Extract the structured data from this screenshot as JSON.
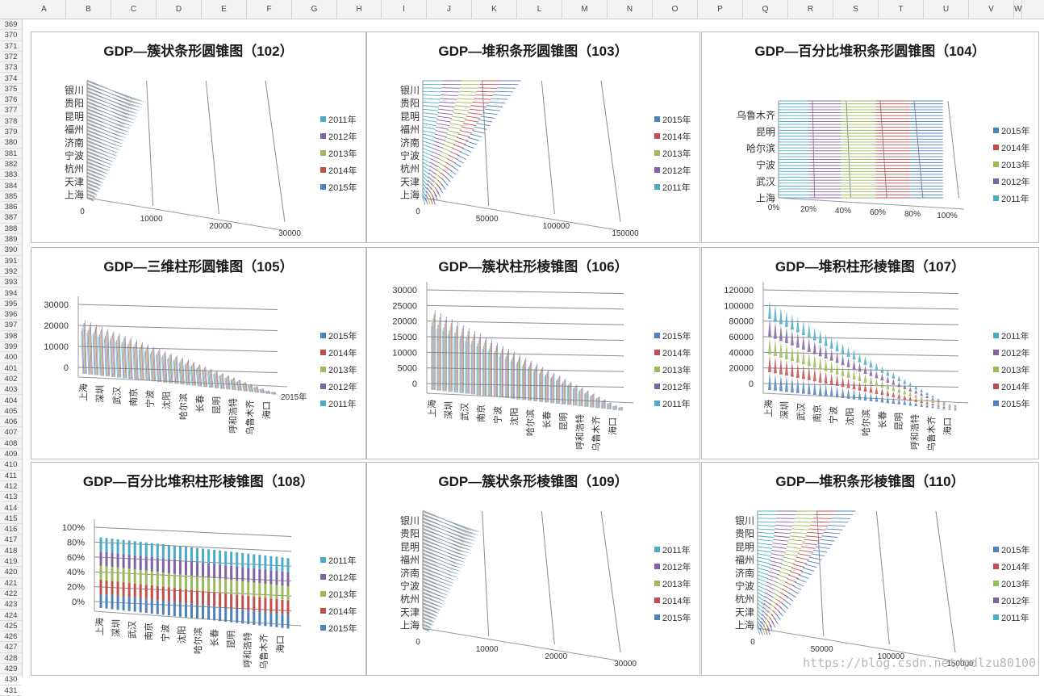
{
  "spreadsheet": {
    "columns": [
      "A",
      "B",
      "C",
      "D",
      "E",
      "F",
      "G",
      "H",
      "I",
      "J",
      "K",
      "L",
      "M",
      "N",
      "O",
      "P",
      "Q",
      "R",
      "S",
      "T",
      "U",
      "V",
      "W"
    ],
    "rows": [
      "369",
      "370",
      "371",
      "372",
      "373",
      "374",
      "375",
      "376",
      "377",
      "378",
      "379",
      "380",
      "381",
      "382",
      "383",
      "384",
      "385",
      "386",
      "387",
      "388",
      "389",
      "390",
      "391",
      "392",
      "393",
      "394",
      "395",
      "396",
      "397",
      "398",
      "399",
      "400",
      "401",
      "402",
      "403",
      "404",
      "405",
      "406",
      "407",
      "408",
      "409",
      "410",
      "411",
      "412",
      "413",
      "414",
      "415",
      "416",
      "417",
      "418",
      "419",
      "420",
      "421",
      "422",
      "423",
      "424",
      "425",
      "426",
      "427",
      "428",
      "429",
      "430",
      "431"
    ]
  },
  "watermark": "https://blog.csdn.net/pdlzu80100",
  "colors": {
    "2011": "#4bacc6",
    "2012": "#8064a2",
    "2013": "#9bbb59",
    "2014": "#c0504d",
    "2015": "#4f81bd"
  },
  "charts": [
    {
      "title": "GDP—簇状条形圆锥图（102）",
      "chart_data": {
        "type": "bar",
        "orientation": "horizontal",
        "stacking": "clustered",
        "shape": "cone",
        "category_labels": [
          "银川",
          "贵阳",
          "昆明",
          "福州",
          "济南",
          "宁波",
          "杭州",
          "天津",
          "上海"
        ],
        "value_ticks": [
          "0",
          "10000",
          "20000",
          "30000"
        ],
        "xlim": [
          0,
          30000
        ],
        "legend": [
          "2011年",
          "2012年",
          "2013年",
          "2014年",
          "2015年"
        ]
      }
    },
    {
      "title": "GDP—堆积条形圆锥图（103）",
      "chart_data": {
        "type": "bar",
        "orientation": "horizontal",
        "stacking": "stacked",
        "shape": "cone",
        "category_labels": [
          "银川",
          "贵阳",
          "昆明",
          "福州",
          "济南",
          "宁波",
          "杭州",
          "天津",
          "上海"
        ],
        "value_ticks": [
          "0",
          "50000",
          "100000",
          "150000"
        ],
        "xlim": [
          0,
          150000
        ],
        "legend": [
          "2015年",
          "2014年",
          "2013年",
          "2012年",
          "2011年"
        ]
      }
    },
    {
      "title": "GDP—百分比堆积条形圆锥图（104）",
      "chart_data": {
        "type": "bar",
        "orientation": "horizontal",
        "stacking": "percent",
        "shape": "cone",
        "category_labels": [
          "乌鲁木齐",
          "昆明",
          "哈尔滨",
          "宁波",
          "武汉",
          "上海"
        ],
        "value_ticks": [
          "0%",
          "20%",
          "40%",
          "60%",
          "80%",
          "100%"
        ],
        "xlim": [
          0,
          1
        ],
        "legend": [
          "2015年",
          "2014年",
          "2013年",
          "2012年",
          "2011年"
        ]
      }
    },
    {
      "title": "GDP—三维柱形圆锥图（105）",
      "chart_data": {
        "type": "bar",
        "orientation": "vertical",
        "stacking": "3d",
        "shape": "cone",
        "category_labels": [
          "上海",
          "深圳",
          "武汉",
          "南京",
          "宁波",
          "沈阳",
          "哈尔滨",
          "长春",
          "昆明",
          "呼和浩特",
          "乌鲁木齐",
          "海口"
        ],
        "value_ticks": [
          "30000",
          "20000",
          "10000",
          "0"
        ],
        "ylim": [
          0,
          30000
        ],
        "depth_label": "2015年",
        "legend": [
          "2015年",
          "2014年",
          "2013年",
          "2012年",
          "2011年"
        ]
      }
    },
    {
      "title": "GDP—簇状柱形棱锥图（106）",
      "chart_data": {
        "type": "bar",
        "orientation": "vertical",
        "stacking": "clustered",
        "shape": "pyramid",
        "category_labels": [
          "上海",
          "深圳",
          "武汉",
          "南京",
          "宁波",
          "沈阳",
          "哈尔滨",
          "长春",
          "昆明",
          "呼和浩特",
          "乌鲁木齐",
          "海口"
        ],
        "value_ticks": [
          "30000",
          "25000",
          "20000",
          "15000",
          "10000",
          "5000",
          "0"
        ],
        "ylim": [
          0,
          30000
        ],
        "legend": [
          "2015年",
          "2014年",
          "2013年",
          "2012年",
          "2011年"
        ]
      }
    },
    {
      "title": "GDP—堆积柱形棱锥图（107）",
      "chart_data": {
        "type": "bar",
        "orientation": "vertical",
        "stacking": "stacked",
        "shape": "pyramid",
        "category_labels": [
          "上海",
          "深圳",
          "武汉",
          "南京",
          "宁波",
          "沈阳",
          "哈尔滨",
          "长春",
          "昆明",
          "呼和浩特",
          "乌鲁木齐",
          "海口"
        ],
        "value_ticks": [
          "120000",
          "100000",
          "80000",
          "60000",
          "40000",
          "20000",
          "0"
        ],
        "ylim": [
          0,
          120000
        ],
        "legend": [
          "2011年",
          "2012年",
          "2013年",
          "2014年",
          "2015年"
        ]
      }
    },
    {
      "title": "GDP—百分比堆积柱形棱锥图（108）",
      "chart_data": {
        "type": "bar",
        "orientation": "vertical",
        "stacking": "percent",
        "shape": "pyramid",
        "category_labels": [
          "上海",
          "深圳",
          "武汉",
          "南京",
          "宁波",
          "沈阳",
          "哈尔滨",
          "长春",
          "昆明",
          "呼和浩特",
          "乌鲁木齐",
          "海口"
        ],
        "value_ticks": [
          "100%",
          "80%",
          "60%",
          "40%",
          "20%",
          "0%"
        ],
        "ylim": [
          0,
          1
        ],
        "legend": [
          "2011年",
          "2012年",
          "2013年",
          "2014年",
          "2015年"
        ]
      }
    },
    {
      "title": "GDP—簇状条形棱锥图（109）",
      "chart_data": {
        "type": "bar",
        "orientation": "horizontal",
        "stacking": "clustered",
        "shape": "pyramid",
        "category_labels": [
          "银川",
          "贵阳",
          "昆明",
          "福州",
          "济南",
          "宁波",
          "杭州",
          "天津",
          "上海"
        ],
        "value_ticks": [
          "0",
          "10000",
          "20000",
          "30000"
        ],
        "xlim": [
          0,
          30000
        ],
        "legend": [
          "2011年",
          "2012年",
          "2013年",
          "2014年",
          "2015年"
        ]
      }
    },
    {
      "title": "GDP—堆积条形棱锥图（110）",
      "chart_data": {
        "type": "bar",
        "orientation": "horizontal",
        "stacking": "stacked",
        "shape": "pyramid",
        "category_labels": [
          "银川",
          "贵阳",
          "昆明",
          "福州",
          "济南",
          "宁波",
          "杭州",
          "天津",
          "上海"
        ],
        "value_ticks": [
          "0",
          "50000",
          "100000",
          "150000"
        ],
        "xlim": [
          0,
          150000
        ],
        "legend": [
          "2015年",
          "2014年",
          "2013年",
          "2012年",
          "2011年"
        ]
      }
    }
  ]
}
